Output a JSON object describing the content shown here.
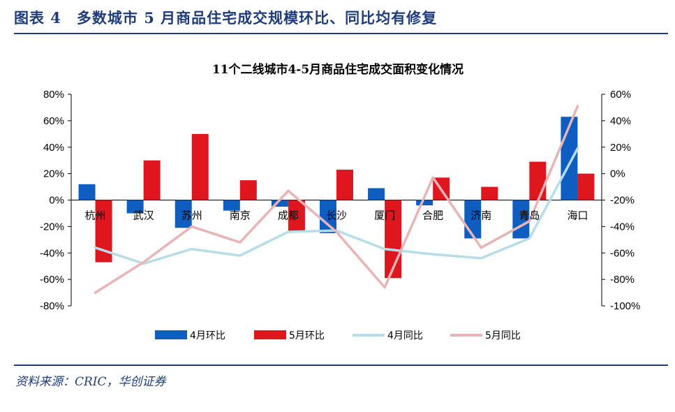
{
  "figure": {
    "title": "图表 4　多数城市 5 月商品住宅成交规模环比、同比均有修复",
    "source": "资料来源：CRIC，华创证券"
  },
  "colors": {
    "header": "#1f3c7a",
    "apr_mom": "#0d5ec0",
    "may_mom": "#e0161e",
    "apr_yoy": "#b7dde9",
    "may_yoy": "#e9b4b6"
  },
  "chart_data": {
    "type": "bar+line",
    "title": "11个二线城市4-5月商品住宅成交面积变化情况",
    "categories": [
      "杭州",
      "武汉",
      "苏州",
      "南京",
      "成都",
      "长沙",
      "厦门",
      "合肥",
      "济南",
      "青岛",
      "海口"
    ],
    "left_axis": {
      "min": -80,
      "max": 80,
      "step": 20,
      "tick_labels": [
        "80%",
        "60%",
        "40%",
        "20%",
        "0%",
        "-20%",
        "-40%",
        "-60%",
        "-80%"
      ]
    },
    "right_axis": {
      "min": -100,
      "max": 60,
      "step": 20,
      "tick_labels": [
        "60%",
        "40%",
        "20%",
        "0%",
        "-20%",
        "-40%",
        "-60%",
        "-80%",
        "-100%"
      ]
    },
    "series": [
      {
        "name": "4月环比",
        "type": "bar",
        "axis": "left",
        "values": [
          12,
          -10,
          -21,
          -8,
          -5,
          -25,
          9,
          -4,
          -29,
          -29,
          63
        ]
      },
      {
        "name": "5月环比",
        "type": "bar",
        "axis": "left",
        "values": [
          -47,
          30,
          50,
          15,
          -24,
          23,
          -59,
          17,
          10,
          29,
          20
        ]
      },
      {
        "name": "4月同比",
        "type": "line",
        "axis": "right",
        "values": [
          -56,
          -68,
          -57,
          -62,
          -44,
          -43,
          -57,
          -61,
          -64,
          -49,
          19
        ]
      },
      {
        "name": "5月同比",
        "type": "line",
        "axis": "right",
        "values": [
          -90,
          -67,
          -40,
          -52,
          -13,
          -44,
          -86,
          -3,
          -56,
          -36,
          51
        ]
      }
    ],
    "legend_position": "bottom"
  }
}
